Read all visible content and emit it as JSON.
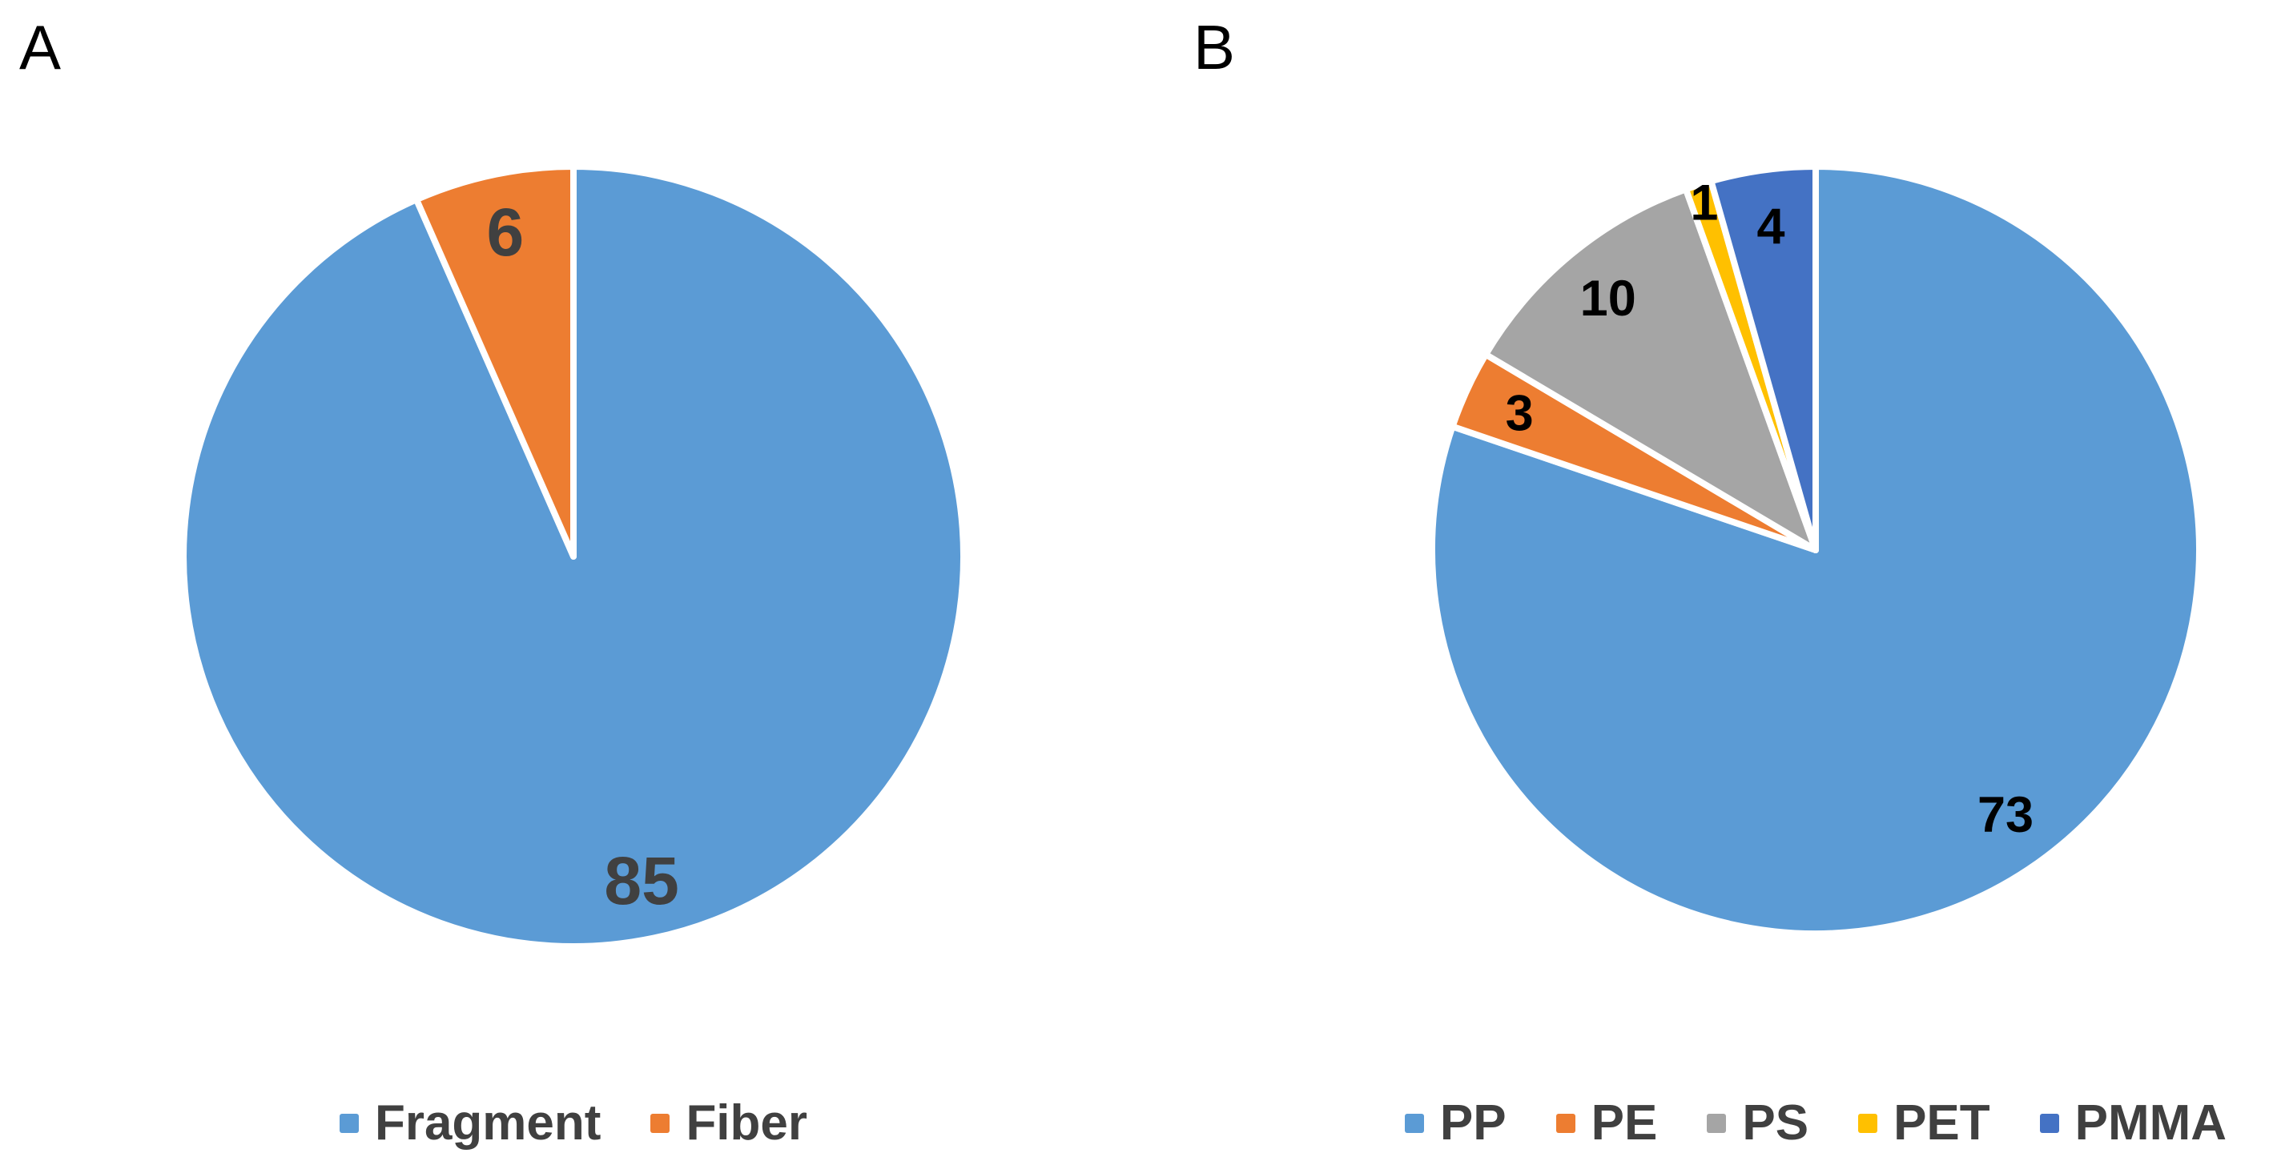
{
  "page": {
    "background": "#FFFFFF"
  },
  "panels": [
    {
      "label": "A"
    },
    {
      "label": "B"
    }
  ],
  "chart_data": [
    {
      "type": "pie",
      "panel": "A",
      "title": "",
      "start_angle_deg": 0,
      "direction": "clockwise",
      "categories": [
        "Fragment",
        "Fiber"
      ],
      "values": [
        85,
        6
      ],
      "colors": [
        "#5B9BD5",
        "#ED7D31"
      ],
      "slice_border_color": "#FFFFFF",
      "data_labels": {
        "show": true,
        "color": "#404040"
      },
      "legend": {
        "position": "bottom",
        "text_color": "#404040"
      }
    },
    {
      "type": "pie",
      "panel": "B",
      "title": "",
      "start_angle_deg": 0,
      "direction": "clockwise",
      "categories": [
        "PP",
        "PE",
        "PS",
        "PET",
        "PMMA"
      ],
      "values": [
        73,
        3,
        10,
        1,
        4
      ],
      "colors": [
        "#5B9BD5",
        "#ED7D31",
        "#A5A5A5",
        "#FFC000",
        "#4472C4"
      ],
      "slice_border_color": "#FFFFFF",
      "data_labels": {
        "show": true,
        "color": "#000000"
      },
      "legend": {
        "position": "bottom",
        "text_color": "#404040"
      }
    }
  ]
}
